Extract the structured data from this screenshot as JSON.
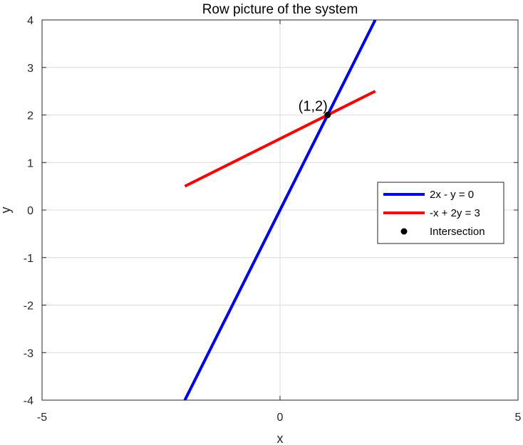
{
  "chart_data": {
    "type": "line",
    "title": "Row picture of the system",
    "xlabel": "x",
    "ylabel": "y",
    "xlim": [
      -5,
      5
    ],
    "ylim": [
      -4,
      4
    ],
    "xticks": [
      -5,
      0,
      5
    ],
    "yticks": [
      -4,
      -3,
      -2,
      -1,
      0,
      1,
      2,
      3,
      4
    ],
    "grid": true,
    "legend_position": "right",
    "series": [
      {
        "name": "2x - y = 0",
        "type": "line",
        "color": "#0000ff",
        "x": [
          -2,
          2
        ],
        "y": [
          -4,
          4
        ]
      },
      {
        "name": "-x + 2y = 3",
        "type": "line",
        "color": "#ff0000",
        "x": [
          -2,
          2
        ],
        "y": [
          0.5,
          2.5
        ]
      },
      {
        "name": "Intersection",
        "type": "scatter",
        "color": "#000000",
        "x": [
          1
        ],
        "y": [
          2
        ]
      }
    ],
    "annotations": [
      {
        "text": "(1,2)",
        "x": 1,
        "y": 2
      }
    ]
  }
}
